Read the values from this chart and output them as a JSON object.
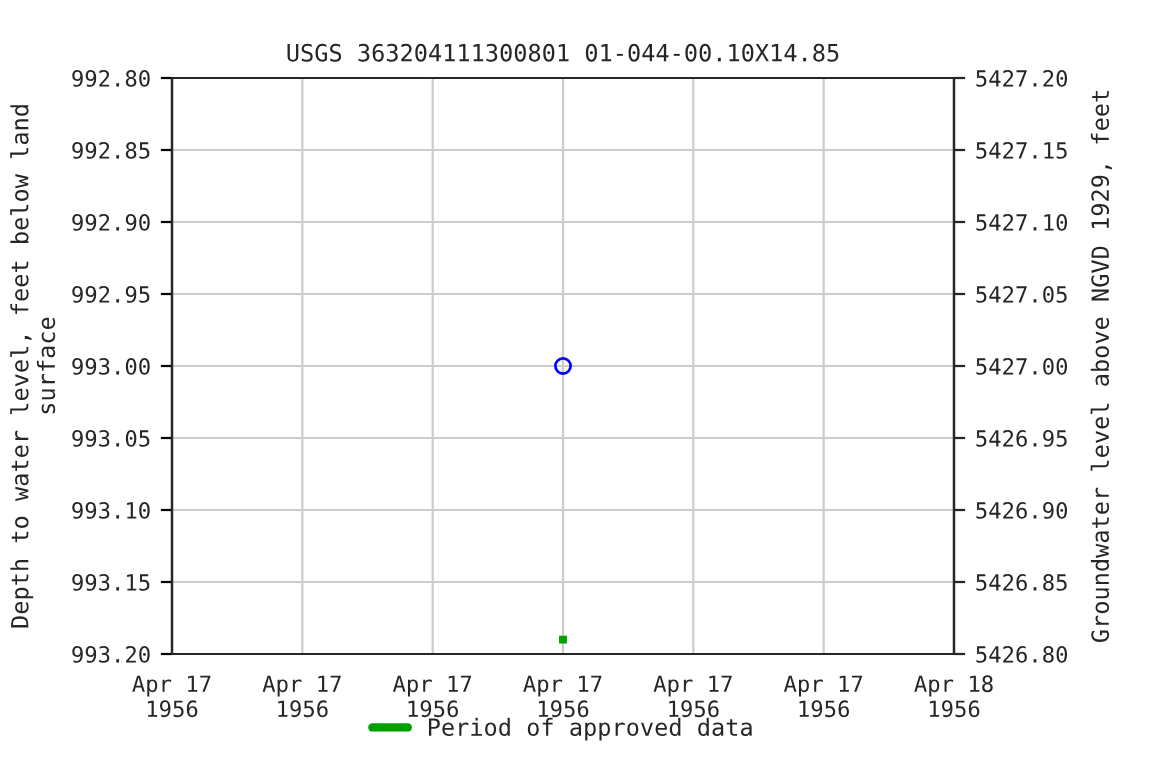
{
  "chart_data": {
    "type": "scatter",
    "title": "USGS 363204111300801 01-044-00.10X14.85",
    "ylabel": "Depth to water level, feet below land\nsurface",
    "y2label": "Groundwater level above NGVD 1929, feet",
    "series": [
      {
        "color": "#0000ff",
        "marker": "circle",
        "x": [
          "1956-04-17T12:00"
        ],
        "values": [
          993.0
        ]
      },
      {
        "color": "#00a000",
        "marker": "square",
        "name": "Period of approved data",
        "x": [
          "1956-04-17T12:00"
        ],
        "values": [
          993.19
        ]
      }
    ],
    "xlim": [
      "1956-04-17T00:00",
      "1956-04-18T00:00"
    ],
    "xticks": [
      {
        "value": "1956-04-17T00:00",
        "label": "Apr 17\n1956"
      },
      {
        "value": "1956-04-17T04:00",
        "label": "Apr 17\n1956"
      },
      {
        "value": "1956-04-17T08:00",
        "label": "Apr 17\n1956"
      },
      {
        "value": "1956-04-17T12:00",
        "label": "Apr 17\n1956"
      },
      {
        "value": "1956-04-17T16:00",
        "label": "Apr 17\n1956"
      },
      {
        "value": "1956-04-17T20:00",
        "label": "Apr 17\n1956"
      },
      {
        "value": "1956-04-18T00:00",
        "label": "Apr 18\n1956"
      }
    ],
    "ylim": [
      993.2,
      992.8
    ],
    "yticks": [
      {
        "value": 992.8,
        "label": "992.80"
      },
      {
        "value": 992.85,
        "label": "992.85"
      },
      {
        "value": 992.9,
        "label": "992.90"
      },
      {
        "value": 992.95,
        "label": "992.95"
      },
      {
        "value": 993.0,
        "label": "993.00"
      },
      {
        "value": 993.05,
        "label": "993.05"
      },
      {
        "value": 993.1,
        "label": "993.10"
      },
      {
        "value": 993.15,
        "label": "993.15"
      },
      {
        "value": 993.2,
        "label": "993.20"
      }
    ],
    "y2lim": [
      5426.8,
      5427.2
    ],
    "y2ticks": [
      {
        "value": 5426.8,
        "label": "5426.80"
      },
      {
        "value": 5426.85,
        "label": "5426.85"
      },
      {
        "value": 5426.9,
        "label": "5426.90"
      },
      {
        "value": 5426.95,
        "label": "5426.95"
      },
      {
        "value": 5427.0,
        "label": "5427.00"
      },
      {
        "value": 5427.05,
        "label": "5427.05"
      },
      {
        "value": 5427.1,
        "label": "5427.10"
      },
      {
        "value": 5427.15,
        "label": "5427.15"
      },
      {
        "value": 5427.2,
        "label": "5427.20"
      }
    ],
    "grid": true,
    "legend": "bottom"
  }
}
